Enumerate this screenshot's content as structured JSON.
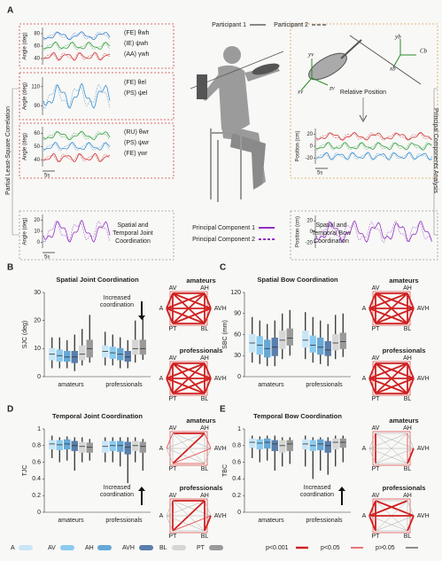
{
  "panels": [
    "A",
    "B",
    "C",
    "D",
    "E"
  ],
  "panel_a": {
    "participants": [
      "Participant 1",
      "Participant 2"
    ],
    "side_left": "Partial Least-Square Correlation",
    "side_right": "Principal Components Analysis",
    "scale_bar": "5s",
    "plots": [
      {
        "ylabel": "Angle (deg)",
        "ylim": [
          30,
          90
        ],
        "yticks": [
          80,
          60,
          40
        ],
        "labels": [
          "(FE) θwh",
          "(IE) ψwh",
          "(AA) γwh"
        ]
      },
      {
        "ylabel": "Angle (deg)",
        "ylim": [
          80,
          120
        ],
        "yticks": [
          110,
          90
        ],
        "labels": [
          "(FE) θel",
          "(PS) ψel"
        ]
      },
      {
        "ylabel": "Angle (deg)",
        "ylim": [
          35,
          65
        ],
        "yticks": [
          60,
          50,
          40
        ],
        "labels": [
          "(RU) θwr",
          "(PS) ψwr",
          "(FE) γwr"
        ]
      },
      {
        "ylabel": "Angle (deg)",
        "ylim": [
          -5,
          25
        ],
        "yticks": [
          20,
          10,
          0
        ]
      },
      {
        "ylabel": "Position (cm)",
        "ylim": [
          -30,
          30
        ],
        "yticks": [
          20,
          0,
          -20
        ]
      },
      {
        "ylabel": "Position (cm)",
        "ylim": [
          -30,
          30
        ],
        "yticks": [
          20,
          0,
          -20
        ]
      }
    ],
    "relative_position": "Relative Position",
    "frame_labels": [
      "yv",
      "zv",
      "xv",
      "yb",
      "xb",
      "Cb"
    ],
    "joint_label": [
      "Spatial and",
      "Temporal Joint",
      "Coordination"
    ],
    "bow_label": [
      "Spatial and",
      "Temporal Bow",
      "Coordination"
    ],
    "components": [
      "Principal Component 1",
      "Principal Component 2"
    ]
  },
  "groups": [
    {
      "name": "A",
      "color": "#c9e6f6"
    },
    {
      "name": "AV",
      "color": "#8ccbef"
    },
    {
      "name": "AH",
      "color": "#66a8d6"
    },
    {
      "name": "AVH",
      "color": "#5a7eab"
    },
    {
      "name": "BL",
      "color": "#d6d6d6"
    },
    {
      "name": "PT",
      "color": "#9a9a9a"
    }
  ],
  "network_nodes": [
    "AV",
    "AH",
    "A",
    "AVH",
    "PT",
    "BL"
  ],
  "significance": [
    "p<0.001",
    "p<0.05",
    "p>0.05"
  ],
  "chart_data": [
    {
      "type": "box",
      "title": "Spatial Joint Coordination",
      "ylabel": "SJC (deg)",
      "categories": [
        "amateurs",
        "professionals"
      ],
      "ylim": [
        0,
        30
      ],
      "yticks": [
        0,
        10,
        20,
        30
      ],
      "annotation": [
        "Increased",
        "coordination"
      ],
      "series": [
        {
          "values": [
            [
              3,
              6,
              8,
              10,
              14
            ],
            [
              4,
              7,
              9,
              11,
              16
            ]
          ]
        },
        {
          "values": [
            [
              3,
              5.5,
              7.5,
              9.5,
              14
            ],
            [
              4,
              6.5,
              8.5,
              10.5,
              15
            ]
          ]
        },
        {
          "values": [
            [
              3,
              5.5,
              7,
              9,
              13
            ],
            [
              3,
              6,
              8,
              10,
              14
            ]
          ]
        },
        {
          "values": [
            [
              2,
              5,
              7,
              9,
              15
            ],
            [
              3,
              5.5,
              7,
              9,
              13
            ]
          ]
        },
        {
          "values": [
            [
              4,
              6,
              8,
              11,
              17
            ],
            [
              5,
              8,
              10,
              13,
              20
            ]
          ]
        },
        {
          "values": [
            [
              5,
              7,
              10,
              13,
              22
            ],
            [
              6,
              8,
              10,
              13,
              21
            ]
          ]
        }
      ]
    },
    {
      "type": "box",
      "title": "Spatial Bow Coordination",
      "ylabel": "SBC (mm)",
      "categories": [
        "amateurs",
        "professionals"
      ],
      "ylim": [
        0,
        120
      ],
      "yticks": [
        0,
        30,
        60,
        90,
        120
      ],
      "series": [
        {
          "values": [
            [
              20,
              35,
              48,
              60,
              85
            ],
            [
              25,
              42,
              52,
              65,
              92
            ]
          ]
        },
        {
          "values": [
            [
              18,
              32,
              45,
              57,
              80
            ],
            [
              20,
              35,
              45,
              58,
              85
            ]
          ]
        },
        {
          "values": [
            [
              15,
              28,
              40,
              52,
              75
            ],
            [
              18,
              32,
              42,
              55,
              80
            ]
          ]
        },
        {
          "values": [
            [
              15,
              30,
              42,
              55,
              80
            ],
            [
              15,
              30,
              38,
              50,
              75
            ]
          ]
        },
        {
          "values": [
            [
              25,
              40,
              52,
              65,
              90
            ],
            [
              25,
              38,
              48,
              60,
              88
            ]
          ]
        },
        {
          "values": [
            [
              30,
              45,
              55,
              68,
              95
            ],
            [
              28,
              40,
              50,
              62,
              90
            ]
          ]
        }
      ]
    },
    {
      "type": "box",
      "title": "Temporal Joint Coordination",
      "ylabel": "TJC",
      "categories": [
        "amateurs",
        "professionals"
      ],
      "ylim": [
        0,
        1
      ],
      "yticks": [
        0,
        0.2,
        0.4,
        0.6,
        0.8,
        1
      ],
      "annotation": [
        "Increased",
        "coordination"
      ],
      "series": [
        {
          "values": [
            [
              0.65,
              0.76,
              0.82,
              0.86,
              0.92
            ],
            [
              0.6,
              0.72,
              0.79,
              0.85,
              0.9
            ]
          ]
        },
        {
          "values": [
            [
              0.6,
              0.75,
              0.81,
              0.86,
              0.9
            ],
            [
              0.6,
              0.74,
              0.8,
              0.85,
              0.9
            ]
          ]
        },
        {
          "values": [
            [
              0.62,
              0.76,
              0.82,
              0.87,
              0.91
            ],
            [
              0.55,
              0.73,
              0.8,
              0.85,
              0.9
            ]
          ]
        },
        {
          "values": [
            [
              0.5,
              0.74,
              0.8,
              0.85,
              0.9
            ],
            [
              0.35,
              0.7,
              0.78,
              0.84,
              0.9
            ]
          ]
        },
        {
          "values": [
            [
              0.6,
              0.72,
              0.79,
              0.84,
              0.9
            ],
            [
              0.6,
              0.74,
              0.8,
              0.85,
              0.9
            ]
          ]
        },
        {
          "values": [
            [
              0.62,
              0.72,
              0.78,
              0.83,
              0.88
            ],
            [
              0.5,
              0.72,
              0.79,
              0.84,
              0.88
            ]
          ]
        }
      ]
    },
    {
      "type": "box",
      "title": "Temporal Bow Coordination",
      "ylabel": "TBC",
      "categories": [
        "amateurs",
        "professionals"
      ],
      "ylim": [
        0,
        1
      ],
      "yticks": [
        0,
        0.2,
        0.4,
        0.6,
        0.8,
        1
      ],
      "annotation": [
        "Increased",
        "coordination"
      ],
      "series": [
        {
          "values": [
            [
              0.65,
              0.78,
              0.84,
              0.88,
              0.92
            ],
            [
              0.55,
              0.76,
              0.82,
              0.87,
              0.92
            ]
          ]
        },
        {
          "values": [
            [
              0.6,
              0.76,
              0.83,
              0.87,
              0.91
            ],
            [
              0.4,
              0.74,
              0.8,
              0.86,
              0.9
            ]
          ]
        },
        {
          "values": [
            [
              0.62,
              0.77,
              0.84,
              0.88,
              0.92
            ],
            [
              0.5,
              0.75,
              0.82,
              0.87,
              0.9
            ]
          ]
        },
        {
          "values": [
            [
              0.5,
              0.74,
              0.82,
              0.86,
              0.92
            ],
            [
              0.45,
              0.72,
              0.8,
              0.85,
              0.9
            ]
          ]
        },
        {
          "values": [
            [
              0.55,
              0.72,
              0.8,
              0.86,
              0.9
            ],
            [
              0.55,
              0.76,
              0.84,
              0.88,
              0.92
            ]
          ]
        },
        {
          "values": [
            [
              0.58,
              0.74,
              0.82,
              0.86,
              0.9
            ],
            [
              0.6,
              0.78,
              0.84,
              0.88,
              0.92
            ]
          ]
        }
      ]
    }
  ]
}
